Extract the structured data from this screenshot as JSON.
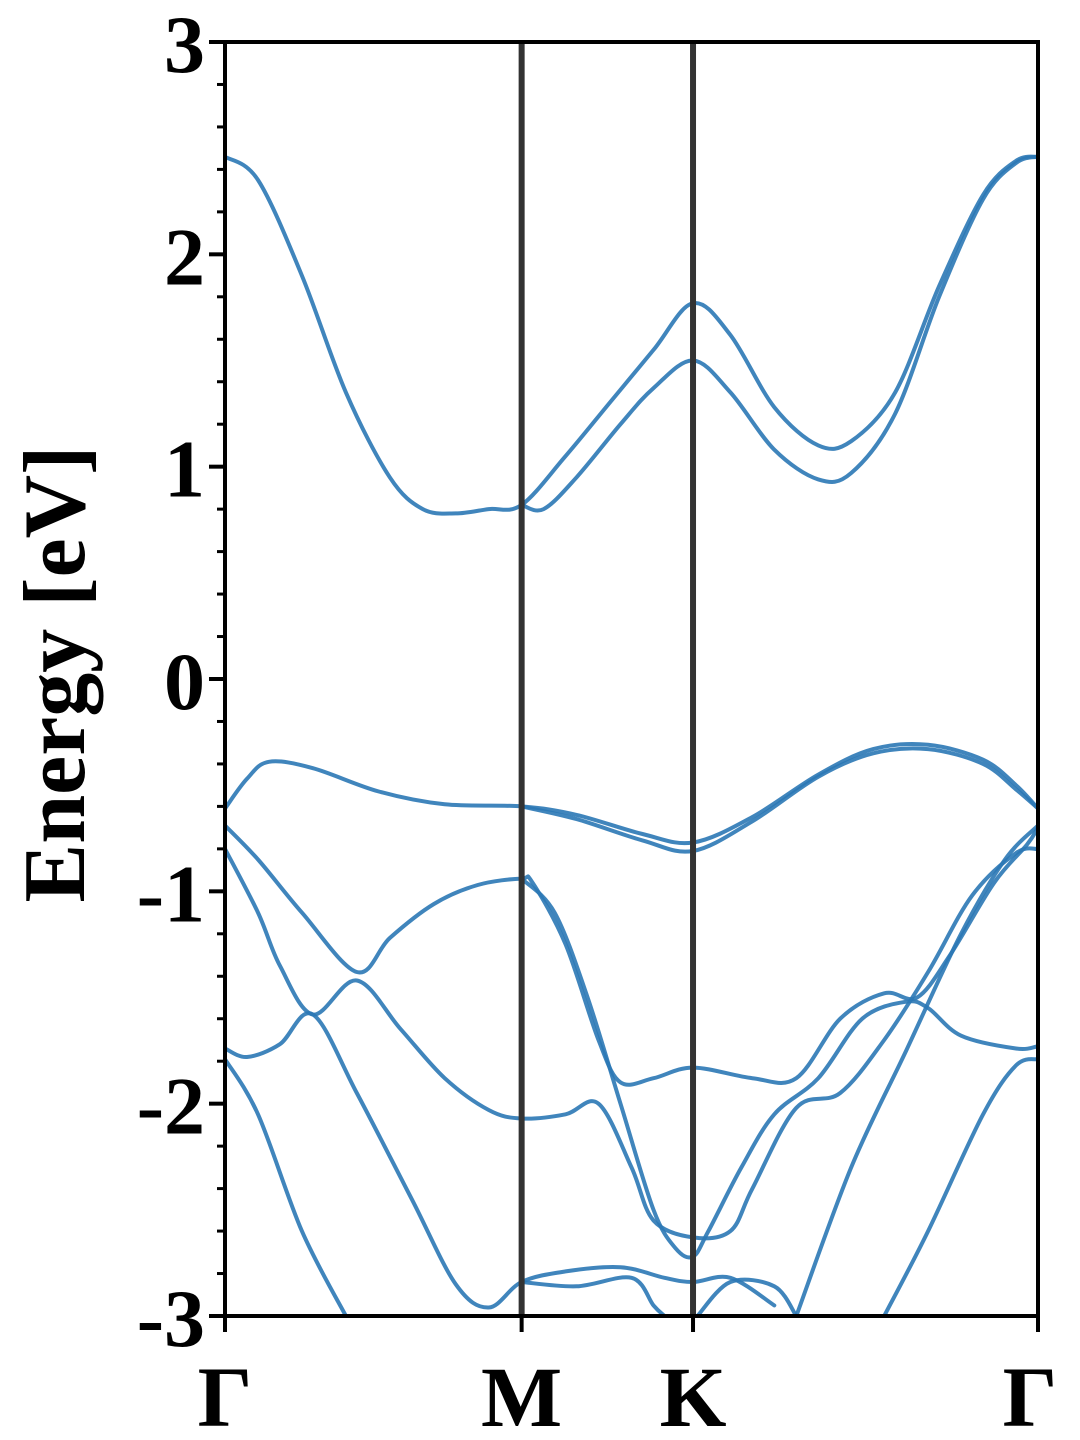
{
  "chart_data": {
    "type": "line",
    "title": "",
    "xlabel": "",
    "ylabel": "Energy [eV]",
    "ylim": [
      -3,
      3
    ],
    "xlim": [
      0,
      3.7
    ],
    "grid": false,
    "yticks": [
      {
        "value": 3,
        "label": "3"
      },
      {
        "value": 2,
        "label": "2"
      },
      {
        "value": 1,
        "label": "1"
      },
      {
        "value": 0,
        "label": "0"
      },
      {
        "value": -1,
        "label": "-1"
      },
      {
        "value": -2,
        "label": "-2"
      },
      {
        "value": -3,
        "label": "-3"
      }
    ],
    "yminor_step": 0.2,
    "high_symmetry_points": [
      {
        "label": "Γ",
        "x": 0
      },
      {
        "label": "M",
        "x": 1.35
      },
      {
        "label": "K",
        "x": 2.13
      },
      {
        "label": "Γ",
        "x": 3.7
      }
    ],
    "line_color": "#2b78b5",
    "divider_color": "#333333",
    "series": [
      {
        "values": [
          [
            0,
            2.46
          ],
          [
            0.15,
            2.35
          ],
          [
            0.35,
            1.9
          ],
          [
            0.55,
            1.35
          ],
          [
            0.75,
            0.95
          ],
          [
            0.9,
            0.8
          ],
          [
            1.05,
            0.78
          ],
          [
            1.2,
            0.8
          ],
          [
            1.35,
            0.82
          ],
          [
            1.55,
            1.05
          ],
          [
            1.75,
            1.3
          ],
          [
            1.95,
            1.55
          ],
          [
            2.13,
            1.77
          ],
          [
            2.3,
            1.62
          ],
          [
            2.5,
            1.28
          ],
          [
            2.7,
            1.1
          ],
          [
            2.85,
            1.12
          ],
          [
            3.05,
            1.35
          ],
          [
            3.25,
            1.85
          ],
          [
            3.45,
            2.28
          ],
          [
            3.6,
            2.44
          ],
          [
            3.7,
            2.46
          ]
        ]
      },
      {
        "values": [
          [
            1.35,
            0.82
          ],
          [
            1.45,
            0.8
          ],
          [
            1.6,
            0.95
          ],
          [
            1.8,
            1.2
          ],
          [
            1.95,
            1.37
          ],
          [
            2.13,
            1.5
          ],
          [
            2.3,
            1.35
          ],
          [
            2.5,
            1.08
          ],
          [
            2.7,
            0.94
          ],
          [
            2.85,
            0.97
          ],
          [
            3.05,
            1.25
          ],
          [
            3.25,
            1.8
          ],
          [
            3.45,
            2.26
          ],
          [
            3.6,
            2.43
          ],
          [
            3.7,
            2.46
          ]
        ]
      },
      {
        "values": [
          [
            0,
            -0.61
          ],
          [
            0.1,
            -0.47
          ],
          [
            0.2,
            -0.39
          ],
          [
            0.4,
            -0.42
          ],
          [
            0.7,
            -0.53
          ],
          [
            1.0,
            -0.59
          ],
          [
            1.35,
            -0.6
          ],
          [
            1.6,
            -0.64
          ],
          [
            1.9,
            -0.73
          ],
          [
            2.13,
            -0.77
          ],
          [
            2.4,
            -0.65
          ],
          [
            2.7,
            -0.45
          ],
          [
            2.95,
            -0.33
          ],
          [
            3.2,
            -0.31
          ],
          [
            3.45,
            -0.38
          ],
          [
            3.6,
            -0.5
          ],
          [
            3.7,
            -0.61
          ]
        ]
      },
      {
        "values": [
          [
            1.35,
            -0.6
          ],
          [
            1.6,
            -0.66
          ],
          [
            1.9,
            -0.76
          ],
          [
            2.13,
            -0.81
          ],
          [
            2.4,
            -0.67
          ],
          [
            2.7,
            -0.46
          ],
          [
            2.95,
            -0.35
          ],
          [
            3.2,
            -0.33
          ],
          [
            3.45,
            -0.4
          ],
          [
            3.6,
            -0.52
          ],
          [
            3.7,
            -0.61
          ]
        ]
      },
      {
        "values": [
          [
            0,
            -0.69
          ],
          [
            0.15,
            -0.85
          ],
          [
            0.35,
            -1.1
          ],
          [
            0.6,
            -1.38
          ],
          [
            0.75,
            -1.22
          ],
          [
            0.95,
            -1.06
          ],
          [
            1.15,
            -0.97
          ],
          [
            1.35,
            -0.94
          ],
          [
            1.4,
            -0.96
          ],
          [
            1.55,
            -1.25
          ],
          [
            1.7,
            -1.7
          ],
          [
            1.8,
            -1.9
          ],
          [
            1.95,
            -1.88
          ],
          [
            2.13,
            -1.83
          ],
          [
            2.4,
            -1.88
          ],
          [
            2.6,
            -1.88
          ],
          [
            2.8,
            -1.6
          ],
          [
            3.0,
            -1.48
          ],
          [
            3.15,
            -1.5
          ],
          [
            3.3,
            -1.3
          ],
          [
            3.5,
            -0.96
          ],
          [
            3.65,
            -0.78
          ],
          [
            3.7,
            -0.7
          ]
        ]
      },
      {
        "values": [
          [
            0,
            -0.8
          ],
          [
            0.15,
            -1.1
          ],
          [
            0.25,
            -1.35
          ],
          [
            0.4,
            -1.58
          ],
          [
            0.6,
            -1.42
          ],
          [
            0.8,
            -1.65
          ],
          [
            1.0,
            -1.88
          ],
          [
            1.2,
            -2.03
          ],
          [
            1.35,
            -2.07
          ],
          [
            1.55,
            -2.05
          ],
          [
            1.7,
            -2.0
          ],
          [
            1.85,
            -2.3
          ],
          [
            1.95,
            -2.55
          ],
          [
            2.13,
            -2.63
          ],
          [
            2.3,
            -2.6
          ],
          [
            2.4,
            -2.4
          ],
          [
            2.6,
            -2.02
          ],
          [
            2.8,
            -1.95
          ],
          [
            3.0,
            -1.7
          ],
          [
            3.2,
            -1.38
          ],
          [
            3.4,
            -1.02
          ],
          [
            3.6,
            -0.82
          ],
          [
            3.7,
            -0.8
          ]
        ]
      },
      {
        "values": [
          [
            1.35,
            -0.94
          ],
          [
            1.5,
            -1.1
          ],
          [
            1.65,
            -1.5
          ],
          [
            1.8,
            -2.0
          ],
          [
            1.95,
            -2.5
          ],
          [
            2.05,
            -2.68
          ],
          [
            2.13,
            -2.72
          ],
          [
            2.2,
            -2.6
          ],
          [
            2.35,
            -2.3
          ],
          [
            2.5,
            -2.05
          ],
          [
            2.7,
            -1.88
          ],
          [
            2.9,
            -1.6
          ],
          [
            3.1,
            -1.52
          ],
          [
            3.2,
            -1.55
          ],
          [
            3.35,
            -1.68
          ],
          [
            3.6,
            -1.74
          ],
          [
            3.7,
            -1.73
          ]
        ]
      },
      {
        "values": [
          [
            0,
            -1.74
          ],
          [
            0.1,
            -1.78
          ],
          [
            0.25,
            -1.72
          ],
          [
            0.4,
            -1.58
          ],
          [
            0.6,
            -1.95
          ],
          [
            0.85,
            -2.45
          ],
          [
            1.05,
            -2.85
          ],
          [
            1.2,
            -2.96
          ],
          [
            1.35,
            -2.84
          ],
          [
            1.55,
            -2.79
          ],
          [
            1.8,
            -2.77
          ],
          [
            2.0,
            -2.82
          ],
          [
            2.13,
            -2.84
          ],
          [
            2.3,
            -2.82
          ],
          [
            2.5,
            -2.95
          ]
        ]
      },
      {
        "values": [
          [
            0,
            -1.79
          ],
          [
            0.15,
            -2.05
          ],
          [
            0.35,
            -2.6
          ],
          [
            0.55,
            -3.0
          ]
        ]
      },
      {
        "values": [
          [
            1.35,
            -2.84
          ],
          [
            1.6,
            -2.86
          ],
          [
            1.85,
            -2.82
          ],
          [
            1.95,
            -2.95
          ],
          [
            2.0,
            -3.0
          ]
        ]
      },
      {
        "values": [
          [
            2.15,
            -3.0
          ],
          [
            2.3,
            -2.84
          ],
          [
            2.5,
            -2.86
          ],
          [
            2.6,
            -3.0
          ]
        ]
      },
      {
        "values": [
          [
            3.0,
            -3.0
          ],
          [
            3.2,
            -2.6
          ],
          [
            3.45,
            -2.05
          ],
          [
            3.6,
            -1.82
          ],
          [
            3.7,
            -1.79
          ]
        ]
      },
      {
        "values": [
          [
            2.6,
            -3.0
          ],
          [
            2.85,
            -2.3
          ],
          [
            3.1,
            -1.75
          ],
          [
            3.35,
            -1.2
          ],
          [
            3.55,
            -0.85
          ],
          [
            3.7,
            -0.69
          ]
        ]
      }
    ]
  }
}
